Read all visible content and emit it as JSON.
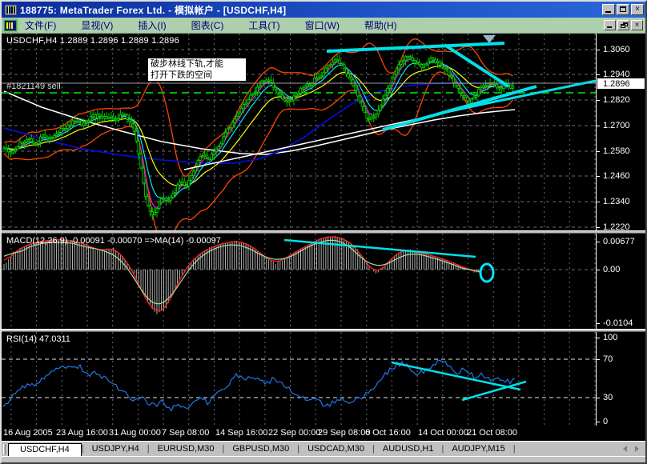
{
  "window": {
    "title": "188775: MetaTrader   Forex Ltd. - 模拟帐户 - [USDCHF,H4]"
  },
  "menu": {
    "items": [
      "文件(F)",
      "显视(V)",
      "插入(I)",
      "图表(C)",
      "工具(T)",
      "窗口(W)",
      "帮助(H)"
    ]
  },
  "chart": {
    "symbol": "USDCHF,H4",
    "header": "USDCHF,H4  1.2889 1.2896 1.2889 1.2896",
    "order_label": "#1821149 sell",
    "annotation_line1": "破步林线下轨,才能",
    "annotation_line2": "打开下跌的空间",
    "current_price": "1.2896",
    "price_labels": [
      "1.3060",
      "1.2940",
      "1.2820",
      "1.2700",
      "1.2580",
      "1.2460",
      "1.2340",
      "1.2220"
    ]
  },
  "macd": {
    "label": "MACD(12,26,9) -0.00091 -0.00070  =>MA(14) -0.00097",
    "axis": [
      "0.00677",
      "0.00",
      "-0.0104"
    ]
  },
  "rsi": {
    "label": "RSI(14) 47.0311",
    "axis": [
      "100",
      "70",
      "30",
      "0"
    ]
  },
  "time_axis": {
    "labels": [
      "16 Aug 2005",
      "23 Aug 16:00",
      "31 Aug 00:00",
      "7 Sep 08:00",
      "14 Sep 16:00",
      "22 Sep 00:00",
      "29 Sep 08:00",
      "6 Oct 16:00",
      "14 Oct 00:00",
      "21 Oct 08:00"
    ]
  },
  "tabs": {
    "items": [
      "USDCHF,H4",
      "USDJPY,H4",
      "EURUSD,M30",
      "GBPUSD,M30",
      "USDCAD,M30",
      "AUDUSD,H1",
      "AUDJPY,M15"
    ],
    "active": "USDCHF,H4"
  },
  "colors": {
    "candle": "#00d000",
    "bands": "#ff4500",
    "ma_fast_magenta": "#ff00ff",
    "ma_mid_cyan": "#00ffff",
    "ma_slow_yellow": "#ffff00",
    "ma_long_white": "#ffffff",
    "ma_long_blue": "#0010cc",
    "trend_cyan": "#00e0e8",
    "order_line_green": "#00b400",
    "current_price_line": "#a0a0a0",
    "grid": "#6b6b78",
    "macd_hist": "#b4b4b4",
    "macd_main_red": "#ff2020",
    "macd_signal_green": "#a6dfa6",
    "rsi_blue": "#2277e8",
    "titlebar_blue": "#1e54c8",
    "menubar_green": "#aecfae"
  }
}
